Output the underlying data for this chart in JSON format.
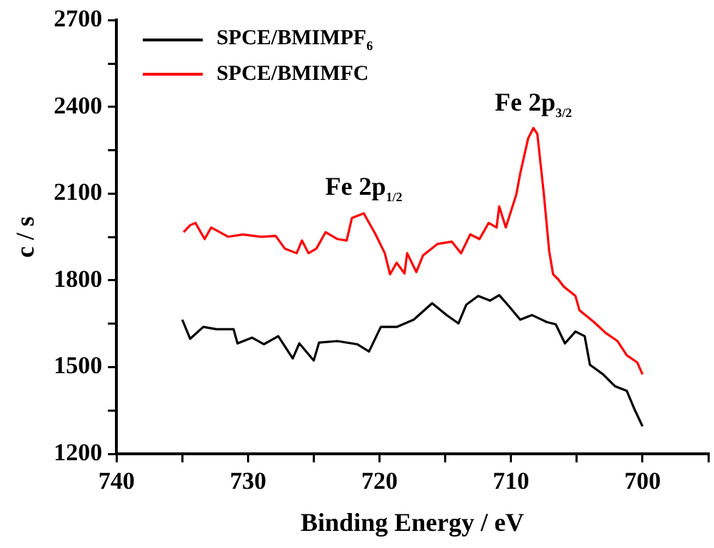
{
  "chart_data": {
    "type": "line",
    "xlabel": "Binding Energy / eV",
    "ylabel": "c / s",
    "xlim": [
      740,
      695
    ],
    "xticks": [
      740,
      {
        "value": 735,
        "label": null
      },
      730,
      {
        "value": 725,
        "label": null
      },
      720,
      {
        "value": 715,
        "label": null
      },
      710,
      {
        "value": 705,
        "label": null
      },
      700,
      {
        "value": 695,
        "label": null
      }
    ],
    "ylim": [
      1200,
      2700
    ],
    "yticks": [
      1200,
      {
        "value": 1350,
        "label": null
      },
      1500,
      {
        "value": 1650,
        "label": null
      },
      1800,
      {
        "value": 1950,
        "label": null
      },
      2100,
      {
        "value": 2250,
        "label": null
      },
      2400,
      {
        "value": 2550,
        "label": null
      },
      2700
    ],
    "grid": false,
    "legend": "top left",
    "marker": "none",
    "line_style": "solid",
    "annotations": [
      {
        "text": "Fe 2p$_{1/2}$",
        "x": 721.2,
        "y": 2032
      },
      {
        "text": "Fe 2p$_{3/2}$",
        "x": 708.3,
        "y": 2327
      }
    ],
    "series": [
      {
        "name": "SPCE/BMIMPF$_{6}$",
        "color": "#000000",
        "x": [
          735,
          734.4,
          733.4,
          732.4,
          731.1,
          730.8,
          729.7,
          728.8,
          727.7,
          726.6,
          726.1,
          725,
          724.6,
          723.2,
          721.7,
          720.8,
          719.9,
          718.7,
          717.4,
          716,
          714.9,
          714,
          713.4,
          712.5,
          711.6,
          710.9,
          710.2,
          709.3,
          708.4,
          707.3,
          706.6,
          705.9,
          705.1,
          704.4,
          704,
          703,
          702.1,
          701.2,
          700.6,
          700
        ],
        "values": [
          1664,
          1598,
          1639,
          1631,
          1631,
          1582,
          1602,
          1579,
          1607,
          1530,
          1582,
          1523,
          1585,
          1590,
          1579,
          1554,
          1639,
          1639,
          1664,
          1721,
          1680,
          1651,
          1716,
          1746,
          1730,
          1749,
          1713,
          1664,
          1680,
          1656,
          1648,
          1582,
          1623,
          1607,
          1508,
          1475,
          1434,
          1418,
          1353,
          1295
        ]
      },
      {
        "name": "SPCE/BMIMFC",
        "color": "#ff0000",
        "x": [
          734.9,
          734.4,
          734,
          733.3,
          732.8,
          731.5,
          730.4,
          729,
          727.9,
          727.2,
          726.3,
          725.9,
          725.4,
          724.8,
          724.1,
          723.2,
          722.5,
          722.1,
          721.2,
          720.3,
          719.6,
          719.2,
          718.7,
          718.1,
          717.9,
          717.2,
          716.7,
          715.6,
          714.5,
          713.8,
          713.1,
          712.4,
          711.7,
          711.1,
          710.9,
          710.4,
          710,
          709.6,
          709.3,
          708.7,
          708.3,
          708,
          707.5,
          707.1,
          706.8,
          706.4,
          706,
          705.1,
          704.8,
          703.7,
          702.8,
          701.9,
          701.2,
          700.4,
          700
        ],
        "values": [
          1967,
          1991,
          1999,
          1943,
          1983,
          1951,
          1959,
          1951,
          1954,
          1910,
          1894,
          1938,
          1894,
          1910,
          1967,
          1943,
          1938,
          2016,
          2032,
          1959,
          1894,
          1821,
          1861,
          1824,
          1894,
          1829,
          1886,
          1926,
          1934,
          1894,
          1959,
          1943,
          1999,
          1983,
          2056,
          1983,
          2040,
          2097,
          2170,
          2291,
          2327,
          2307,
          2097,
          1902,
          1821,
          1803,
          1779,
          1746,
          1697,
          1656,
          1618,
          1590,
          1541,
          1516,
          1475
        ]
      }
    ]
  }
}
